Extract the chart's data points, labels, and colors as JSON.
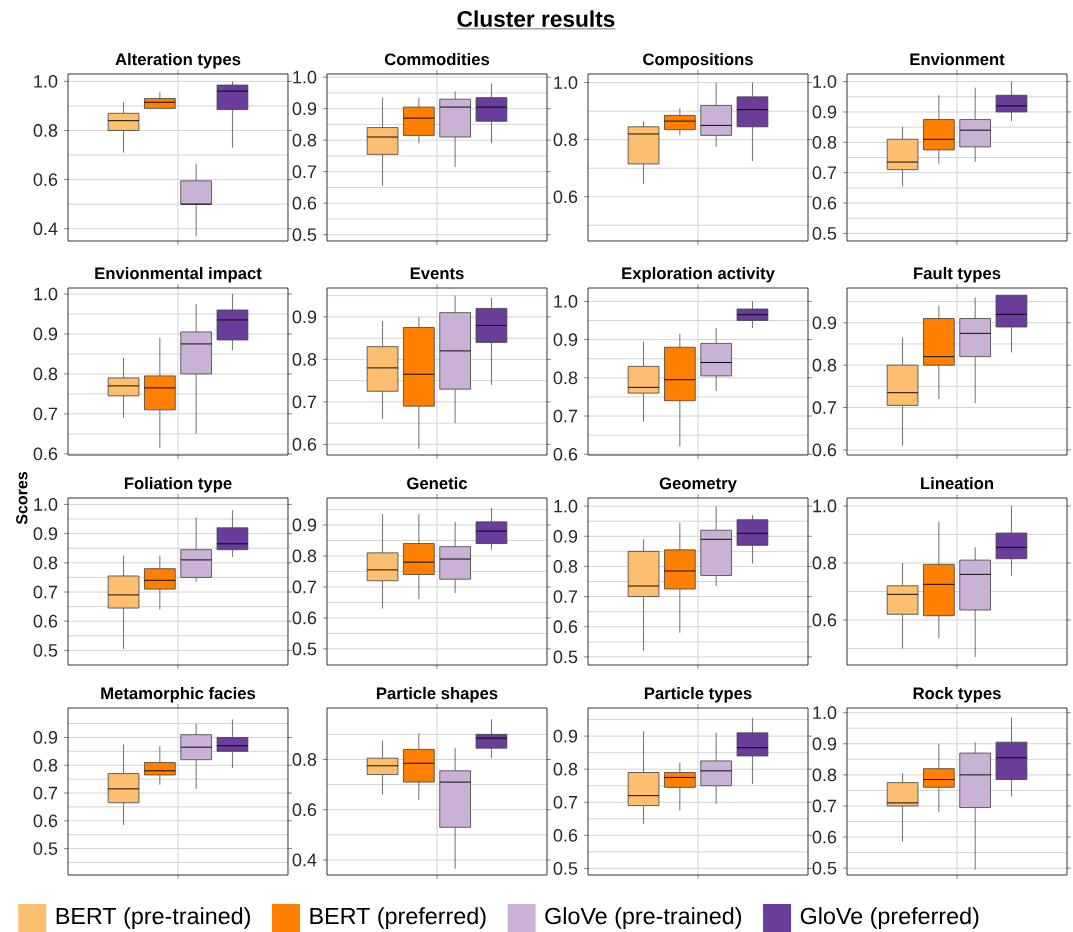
{
  "chart_data": [
    {
      "type": "box",
      "title": "Alteration types",
      "annotations": [
        "Cluster results"
      ],
      "legend": "bottom",
      "categories": [
        null
      ],
      "tick_labels": "y",
      "grid": true,
      "ylim": [
        0.35,
        1.03
      ],
      "yticks": [
        0.4,
        {
          "value": 0.5,
          "label": null
        },
        0.6,
        {
          "value": 0.7,
          "label": null
        },
        0.8,
        {
          "value": 0.9,
          "label": null
        },
        {
          "value": 1.0,
          "label": "1.0"
        }
      ],
      "series": [
        {
          "name": "BERT (pre-trained)",
          "color": "#fdbf6f",
          "boxes": [
            {
              "low": 0.71,
              "q1": 0.8,
              "median": 0.84,
              "q3": 0.87,
              "high": 0.915
            }
          ]
        },
        {
          "name": "BERT (preferred)",
          "color": "#ff7f00",
          "boxes": [
            {
              "low": 0.89,
              "q1": 0.89,
              "median": 0.915,
              "q3": 0.93,
              "high": 0.955
            }
          ]
        },
        {
          "name": "GloVe (pre-trained)",
          "color": "#cab2d6",
          "boxes": [
            {
              "low": 0.37,
              "q1": 0.5,
              "median": 0.5,
              "q3": 0.595,
              "high": 0.665
            }
          ]
        },
        {
          "name": "GloVe (preferred)",
          "color": "#6a3d9a",
          "boxes": [
            {
              "low": 0.73,
              "q1": 0.885,
              "median": 0.96,
              "q3": 0.985,
              "high": 1.0
            }
          ]
        }
      ]
    },
    {
      "type": "box",
      "title": "Commodities",
      "categories": [
        null
      ],
      "tick_labels": "y",
      "grid": true,
      "ylim": [
        0.48,
        1.01
      ],
      "yticks": [
        0.5,
        {
          "value": 0.55,
          "label": null
        },
        0.6,
        {
          "value": 0.65,
          "label": null
        },
        0.7,
        {
          "value": 0.75,
          "label": null
        },
        0.8,
        {
          "value": 0.85,
          "label": null
        },
        0.9,
        {
          "value": 0.95,
          "label": null
        },
        {
          "value": 1.0,
          "label": "1.0"
        }
      ],
      "series": [
        {
          "color": "#fdbf6f",
          "boxes": [
            {
              "low": 0.655,
              "q1": 0.755,
              "median": 0.81,
              "q3": 0.84,
              "high": 0.935
            }
          ]
        },
        {
          "color": "#ff7f00",
          "boxes": [
            {
              "low": 0.79,
              "q1": 0.815,
              "median": 0.87,
              "q3": 0.905,
              "high": 0.935
            }
          ]
        },
        {
          "color": "#cab2d6",
          "boxes": [
            {
              "low": 0.715,
              "q1": 0.81,
              "median": 0.905,
              "q3": 0.93,
              "high": 0.955
            }
          ]
        },
        {
          "color": "#6a3d9a",
          "boxes": [
            {
              "low": 0.79,
              "q1": 0.86,
              "median": 0.905,
              "q3": 0.935,
              "high": 0.98
            }
          ]
        }
      ]
    },
    {
      "type": "box",
      "title": "Compositions",
      "categories": [
        null
      ],
      "tick_labels": "y",
      "grid": true,
      "ylim": [
        0.445,
        1.03
      ],
      "yticks": [
        {
          "value": 0.5,
          "label": null
        },
        0.6,
        {
          "value": 0.7,
          "label": null
        },
        0.8,
        {
          "value": 0.9,
          "label": null
        },
        {
          "value": 1.0,
          "label": "1.0"
        }
      ],
      "series": [
        {
          "color": "#fdbf6f",
          "boxes": [
            {
              "low": 0.645,
              "q1": 0.715,
              "median": 0.82,
              "q3": 0.845,
              "high": 0.865
            }
          ]
        },
        {
          "color": "#ff7f00",
          "boxes": [
            {
              "low": 0.815,
              "q1": 0.835,
              "median": 0.865,
              "q3": 0.885,
              "high": 0.91
            }
          ]
        },
        {
          "color": "#cab2d6",
          "boxes": [
            {
              "low": 0.775,
              "q1": 0.815,
              "median": 0.85,
              "q3": 0.92,
              "high": 1.0
            }
          ]
        },
        {
          "color": "#6a3d9a",
          "boxes": [
            {
              "low": 0.725,
              "q1": 0.845,
              "median": 0.905,
              "q3": 0.95,
              "high": 1.0
            }
          ]
        }
      ]
    },
    {
      "type": "box",
      "title": "Envionment",
      "categories": [
        null
      ],
      "tick_labels": "y",
      "grid": true,
      "ylim": [
        0.475,
        1.025
      ],
      "yticks": [
        0.5,
        {
          "value": 0.55,
          "label": null
        },
        0.6,
        {
          "value": 0.65,
          "label": null
        },
        0.7,
        {
          "value": 0.75,
          "label": null
        },
        0.8,
        {
          "value": 0.85,
          "label": null
        },
        0.9,
        {
          "value": 0.95,
          "label": null
        },
        {
          "value": 1.0,
          "label": "1.0"
        }
      ],
      "series": [
        {
          "color": "#fdbf6f",
          "boxes": [
            {
              "low": 0.655,
              "q1": 0.71,
              "median": 0.735,
              "q3": 0.81,
              "high": 0.85
            }
          ]
        },
        {
          "color": "#ff7f00",
          "boxes": [
            {
              "low": 0.73,
              "q1": 0.775,
              "median": 0.81,
              "q3": 0.875,
              "high": 0.955
            }
          ]
        },
        {
          "color": "#cab2d6",
          "boxes": [
            {
              "low": 0.735,
              "q1": 0.785,
              "median": 0.84,
              "q3": 0.875,
              "high": 0.98
            }
          ]
        },
        {
          "color": "#6a3d9a",
          "boxes": [
            {
              "low": 0.87,
              "q1": 0.9,
              "median": 0.92,
              "q3": 0.955,
              "high": 1.0
            }
          ]
        }
      ]
    },
    {
      "type": "box",
      "title": "Envionmental impact",
      "categories": [
        null
      ],
      "tick_labels": "y",
      "grid": true,
      "ylim": [
        0.597,
        1.015
      ],
      "yticks": [
        0.6,
        {
          "value": 0.65,
          "label": null
        },
        0.7,
        {
          "value": 0.75,
          "label": null
        },
        0.8,
        {
          "value": 0.85,
          "label": null
        },
        0.9,
        {
          "value": 0.95,
          "label": null
        },
        {
          "value": 1.0,
          "label": "1.0"
        }
      ],
      "series": [
        {
          "color": "#fdbf6f",
          "boxes": [
            {
              "low": 0.69,
              "q1": 0.745,
              "median": 0.77,
              "q3": 0.79,
              "high": 0.84
            }
          ]
        },
        {
          "color": "#ff7f00",
          "boxes": [
            {
              "low": 0.615,
              "q1": 0.71,
              "median": 0.765,
              "q3": 0.795,
              "high": 0.89
            }
          ]
        },
        {
          "color": "#cab2d6",
          "boxes": [
            {
              "low": 0.65,
              "q1": 0.8,
              "median": 0.875,
              "q3": 0.905,
              "high": 0.975
            }
          ]
        },
        {
          "color": "#6a3d9a",
          "boxes": [
            {
              "low": 0.86,
              "q1": 0.885,
              "median": 0.935,
              "q3": 0.96,
              "high": 1.0
            }
          ]
        }
      ]
    },
    {
      "type": "box",
      "title": "Events",
      "categories": [
        null
      ],
      "tick_labels": "y",
      "grid": true,
      "ylim": [
        0.575,
        0.968
      ],
      "yticks": [
        0.6,
        {
          "value": 0.65,
          "label": null
        },
        0.7,
        {
          "value": 0.75,
          "label": null
        },
        0.8,
        {
          "value": 0.85,
          "label": null
        },
        0.9,
        {
          "value": 0.95,
          "label": null
        }
      ],
      "series": [
        {
          "color": "#fdbf6f",
          "boxes": [
            {
              "low": 0.66,
              "q1": 0.725,
              "median": 0.78,
              "q3": 0.83,
              "high": 0.89
            }
          ]
        },
        {
          "color": "#ff7f00",
          "boxes": [
            {
              "low": 0.59,
              "q1": 0.69,
              "median": 0.765,
              "q3": 0.875,
              "high": 0.9
            }
          ]
        },
        {
          "color": "#cab2d6",
          "boxes": [
            {
              "low": 0.65,
              "q1": 0.73,
              "median": 0.82,
              "q3": 0.91,
              "high": 0.95
            }
          ]
        },
        {
          "color": "#6a3d9a",
          "boxes": [
            {
              "low": 0.74,
              "q1": 0.84,
              "median": 0.88,
              "q3": 0.92,
              "high": 0.945
            }
          ]
        }
      ]
    },
    {
      "type": "box",
      "title": "Exploration activity",
      "categories": [
        null
      ],
      "tick_labels": "y",
      "grid": true,
      "ylim": [
        0.598,
        1.035
      ],
      "yticks": [
        0.6,
        {
          "value": 0.65,
          "label": null
        },
        0.7,
        {
          "value": 0.75,
          "label": null
        },
        0.8,
        {
          "value": 0.85,
          "label": null
        },
        0.9,
        {
          "value": 0.95,
          "label": null
        },
        {
          "value": 1.0,
          "label": "1.0"
        }
      ],
      "series": [
        {
          "color": "#fdbf6f",
          "boxes": [
            {
              "low": 0.685,
              "q1": 0.76,
              "median": 0.775,
              "q3": 0.83,
              "high": 0.895
            }
          ]
        },
        {
          "color": "#ff7f00",
          "boxes": [
            {
              "low": 0.62,
              "q1": 0.74,
              "median": 0.795,
              "q3": 0.88,
              "high": 0.915
            }
          ]
        },
        {
          "color": "#cab2d6",
          "boxes": [
            {
              "low": 0.765,
              "q1": 0.805,
              "median": 0.84,
              "q3": 0.89,
              "high": 0.93
            }
          ]
        },
        {
          "color": "#6a3d9a",
          "boxes": [
            {
              "low": 0.93,
              "q1": 0.95,
              "median": 0.965,
              "q3": 0.98,
              "high": 1.0
            }
          ]
        }
      ]
    },
    {
      "type": "box",
      "title": "Fault types",
      "categories": [
        null
      ],
      "tick_labels": "y",
      "grid": true,
      "ylim": [
        0.588,
        0.982
      ],
      "yticks": [
        0.6,
        {
          "value": 0.65,
          "label": null
        },
        0.7,
        {
          "value": 0.75,
          "label": null
        },
        0.8,
        {
          "value": 0.85,
          "label": null
        },
        0.9,
        {
          "value": 0.95,
          "label": null
        }
      ],
      "series": [
        {
          "color": "#fdbf6f",
          "boxes": [
            {
              "low": 0.61,
              "q1": 0.705,
              "median": 0.735,
              "q3": 0.8,
              "high": 0.865
            }
          ]
        },
        {
          "color": "#ff7f00",
          "boxes": [
            {
              "low": 0.72,
              "q1": 0.8,
              "median": 0.82,
              "q3": 0.91,
              "high": 0.94
            }
          ]
        },
        {
          "color": "#cab2d6",
          "boxes": [
            {
              "low": 0.71,
              "q1": 0.82,
              "median": 0.875,
              "q3": 0.91,
              "high": 0.96
            }
          ]
        },
        {
          "color": "#6a3d9a",
          "boxes": [
            {
              "low": 0.83,
              "q1": 0.89,
              "median": 0.92,
              "q3": 0.965,
              "high": 0.965
            }
          ]
        }
      ]
    },
    {
      "type": "box",
      "title": "Foliation type",
      "ylabel": "Scores",
      "categories": [
        null
      ],
      "tick_labels": "y",
      "grid": true,
      "ylim": [
        0.45,
        1.022
      ],
      "yticks": [
        0.5,
        {
          "value": 0.55,
          "label": null
        },
        0.6,
        {
          "value": 0.65,
          "label": null
        },
        0.7,
        {
          "value": 0.75,
          "label": null
        },
        0.8,
        {
          "value": 0.85,
          "label": null
        },
        0.9,
        {
          "value": 0.95,
          "label": null
        },
        {
          "value": 1.0,
          "label": "1.0"
        }
      ],
      "series": [
        {
          "color": "#fdbf6f",
          "boxes": [
            {
              "low": 0.505,
              "q1": 0.645,
              "median": 0.69,
              "q3": 0.755,
              "high": 0.825
            }
          ]
        },
        {
          "color": "#ff7f00",
          "boxes": [
            {
              "low": 0.64,
              "q1": 0.71,
              "median": 0.74,
              "q3": 0.78,
              "high": 0.825
            }
          ]
        },
        {
          "color": "#cab2d6",
          "boxes": [
            {
              "low": 0.735,
              "q1": 0.75,
              "median": 0.81,
              "q3": 0.845,
              "high": 0.955
            }
          ]
        },
        {
          "color": "#6a3d9a",
          "boxes": [
            {
              "low": 0.82,
              "q1": 0.845,
              "median": 0.865,
              "q3": 0.92,
              "high": 0.98
            }
          ]
        }
      ]
    },
    {
      "type": "box",
      "title": "Genetic",
      "categories": [
        null
      ],
      "tick_labels": "y",
      "grid": true,
      "ylim": [
        0.448,
        0.987
      ],
      "yticks": [
        0.5,
        {
          "value": 0.55,
          "label": null
        },
        0.6,
        {
          "value": 0.65,
          "label": null
        },
        0.7,
        {
          "value": 0.75,
          "label": null
        },
        0.8,
        {
          "value": 0.85,
          "label": null
        },
        0.9,
        {
          "value": 0.95,
          "label": null
        }
      ],
      "series": [
        {
          "color": "#fdbf6f",
          "boxes": [
            {
              "low": 0.63,
              "q1": 0.72,
              "median": 0.755,
              "q3": 0.81,
              "high": 0.935
            }
          ]
        },
        {
          "color": "#ff7f00",
          "boxes": [
            {
              "low": 0.66,
              "q1": 0.74,
              "median": 0.78,
              "q3": 0.84,
              "high": 0.935
            }
          ]
        },
        {
          "color": "#cab2d6",
          "boxes": [
            {
              "low": 0.68,
              "q1": 0.725,
              "median": 0.79,
              "q3": 0.83,
              "high": 0.91
            }
          ]
        },
        {
          "color": "#6a3d9a",
          "boxes": [
            {
              "low": 0.82,
              "q1": 0.84,
              "median": 0.88,
              "q3": 0.91,
              "high": 0.955
            }
          ]
        }
      ]
    },
    {
      "type": "box",
      "title": "Geometry",
      "categories": [
        null
      ],
      "tick_labels": "y",
      "grid": true,
      "ylim": [
        0.473,
        1.027
      ],
      "yticks": [
        0.5,
        {
          "value": 0.55,
          "label": null
        },
        0.6,
        {
          "value": 0.65,
          "label": null
        },
        0.7,
        {
          "value": 0.75,
          "label": null
        },
        0.8,
        {
          "value": 0.85,
          "label": null
        },
        0.9,
        {
          "value": 0.95,
          "label": null
        },
        {
          "value": 1.0,
          "label": "1.0"
        }
      ],
      "series": [
        {
          "color": "#fdbf6f",
          "boxes": [
            {
              "low": 0.52,
              "q1": 0.7,
              "median": 0.735,
              "q3": 0.85,
              "high": 0.89
            }
          ]
        },
        {
          "color": "#ff7f00",
          "boxes": [
            {
              "low": 0.58,
              "q1": 0.725,
              "median": 0.785,
              "q3": 0.855,
              "high": 0.945
            }
          ]
        },
        {
          "color": "#cab2d6",
          "boxes": [
            {
              "low": 0.735,
              "q1": 0.77,
              "median": 0.89,
              "q3": 0.92,
              "high": 1.0
            }
          ]
        },
        {
          "color": "#6a3d9a",
          "boxes": [
            {
              "low": 0.81,
              "q1": 0.87,
              "median": 0.91,
              "q3": 0.955,
              "high": 0.97
            }
          ]
        }
      ]
    },
    {
      "type": "box",
      "title": "Lineation",
      "categories": [
        null
      ],
      "tick_labels": "y",
      "grid": true,
      "ylim": [
        0.442,
        1.028
      ],
      "yticks": [
        {
          "value": 0.5,
          "label": null
        },
        0.6,
        {
          "value": 0.7,
          "label": null
        },
        0.8,
        {
          "value": 0.9,
          "label": null
        },
        {
          "value": 1.0,
          "label": "1.0"
        }
      ],
      "series": [
        {
          "color": "#fdbf6f",
          "boxes": [
            {
              "low": 0.5,
              "q1": 0.62,
              "median": 0.69,
              "q3": 0.72,
              "high": 0.8
            }
          ]
        },
        {
          "color": "#ff7f00",
          "boxes": [
            {
              "low": 0.535,
              "q1": 0.615,
              "median": 0.725,
              "q3": 0.795,
              "high": 0.945
            }
          ]
        },
        {
          "color": "#cab2d6",
          "boxes": [
            {
              "low": 0.47,
              "q1": 0.635,
              "median": 0.76,
              "q3": 0.81,
              "high": 0.855
            }
          ]
        },
        {
          "color": "#6a3d9a",
          "boxes": [
            {
              "low": 0.755,
              "q1": 0.815,
              "median": 0.855,
              "q3": 0.905,
              "high": 1.0
            }
          ]
        }
      ]
    },
    {
      "type": "box",
      "title": "Metamorphic facies",
      "categories": [
        null
      ],
      "tick_labels": "y",
      "grid": true,
      "ylim": [
        0.405,
        1.006
      ],
      "yticks": [
        {
          "value": 0.45,
          "label": null
        },
        0.5,
        {
          "value": 0.55,
          "label": null
        },
        0.6,
        {
          "value": 0.65,
          "label": null
        },
        0.7,
        {
          "value": 0.75,
          "label": null
        },
        0.8,
        {
          "value": 0.85,
          "label": null
        },
        0.9,
        {
          "value": 0.95,
          "label": null
        }
      ],
      "series": [
        {
          "color": "#fdbf6f",
          "boxes": [
            {
              "low": 0.585,
              "q1": 0.665,
              "median": 0.715,
              "q3": 0.77,
              "high": 0.875
            }
          ]
        },
        {
          "color": "#ff7f00",
          "boxes": [
            {
              "low": 0.73,
              "q1": 0.765,
              "median": 0.78,
              "q3": 0.81,
              "high": 0.87
            }
          ]
        },
        {
          "color": "#cab2d6",
          "boxes": [
            {
              "low": 0.715,
              "q1": 0.82,
              "median": 0.865,
              "q3": 0.91,
              "high": 0.95
            }
          ]
        },
        {
          "color": "#6a3d9a",
          "boxes": [
            {
              "low": 0.79,
              "q1": 0.85,
              "median": 0.87,
              "q3": 0.9,
              "high": 0.965
            }
          ]
        }
      ]
    },
    {
      "type": "box",
      "title": "Particle shapes",
      "categories": [
        null
      ],
      "tick_labels": "y",
      "grid": true,
      "ylim": [
        0.34,
        1.005
      ],
      "yticks": [
        0.4,
        {
          "value": 0.5,
          "label": null
        },
        0.6,
        {
          "value": 0.7,
          "label": null
        },
        0.8,
        {
          "value": 0.9,
          "label": null
        }
      ],
      "series": [
        {
          "color": "#fdbf6f",
          "boxes": [
            {
              "low": 0.66,
              "q1": 0.74,
              "median": 0.775,
              "q3": 0.805,
              "high": 0.875
            }
          ]
        },
        {
          "color": "#ff7f00",
          "boxes": [
            {
              "low": 0.64,
              "q1": 0.71,
              "median": 0.785,
              "q3": 0.84,
              "high": 0.905
            }
          ]
        },
        {
          "color": "#cab2d6",
          "boxes": [
            {
              "low": 0.365,
              "q1": 0.53,
              "median": 0.71,
              "q3": 0.755,
              "high": 0.845
            }
          ]
        },
        {
          "color": "#6a3d9a",
          "boxes": [
            {
              "low": 0.805,
              "q1": 0.845,
              "median": 0.885,
              "q3": 0.9,
              "high": 0.96
            }
          ]
        }
      ]
    },
    {
      "type": "box",
      "title": "Particle types",
      "categories": [
        null
      ],
      "tick_labels": "y",
      "grid": true,
      "ylim": [
        0.48,
        0.985
      ],
      "yticks": [
        0.5,
        {
          "value": 0.55,
          "label": null
        },
        0.6,
        {
          "value": 0.65,
          "label": null
        },
        0.7,
        {
          "value": 0.75,
          "label": null
        },
        0.8,
        {
          "value": 0.85,
          "label": null
        },
        0.9,
        {
          "value": 0.95,
          "label": null
        }
      ],
      "series": [
        {
          "color": "#fdbf6f",
          "boxes": [
            {
              "low": 0.635,
              "q1": 0.69,
              "median": 0.72,
              "q3": 0.79,
              "high": 0.915
            }
          ]
        },
        {
          "color": "#ff7f00",
          "boxes": [
            {
              "low": 0.675,
              "q1": 0.745,
              "median": 0.775,
              "q3": 0.79,
              "high": 0.82
            }
          ]
        },
        {
          "color": "#cab2d6",
          "boxes": [
            {
              "low": 0.695,
              "q1": 0.75,
              "median": 0.795,
              "q3": 0.825,
              "high": 0.91
            }
          ]
        },
        {
          "color": "#6a3d9a",
          "boxes": [
            {
              "low": 0.755,
              "q1": 0.84,
              "median": 0.865,
              "q3": 0.91,
              "high": 0.955
            }
          ]
        }
      ]
    },
    {
      "type": "box",
      "title": "Rock types",
      "categories": [
        null
      ],
      "tick_labels": "y",
      "grid": true,
      "ylim": [
        0.478,
        1.015
      ],
      "yticks": [
        0.5,
        {
          "value": 0.55,
          "label": null
        },
        0.6,
        {
          "value": 0.65,
          "label": null
        },
        0.7,
        {
          "value": 0.75,
          "label": null
        },
        0.8,
        {
          "value": 0.85,
          "label": null
        },
        0.9,
        {
          "value": 0.95,
          "label": null
        },
        {
          "value": 1.0,
          "label": "1.0"
        }
      ],
      "series": [
        {
          "color": "#fdbf6f",
          "boxes": [
            {
              "low": 0.585,
              "q1": 0.7,
              "median": 0.71,
              "q3": 0.775,
              "high": 0.805
            }
          ]
        },
        {
          "color": "#ff7f00",
          "boxes": [
            {
              "low": 0.68,
              "q1": 0.76,
              "median": 0.785,
              "q3": 0.82,
              "high": 0.9
            }
          ]
        },
        {
          "color": "#cab2d6",
          "boxes": [
            {
              "low": 0.495,
              "q1": 0.695,
              "median": 0.8,
              "q3": 0.87,
              "high": 0.905
            }
          ]
        },
        {
          "color": "#6a3d9a",
          "boxes": [
            {
              "low": 0.73,
              "q1": 0.785,
              "median": 0.855,
              "q3": 0.905,
              "high": 0.985
            }
          ]
        }
      ]
    }
  ]
}
